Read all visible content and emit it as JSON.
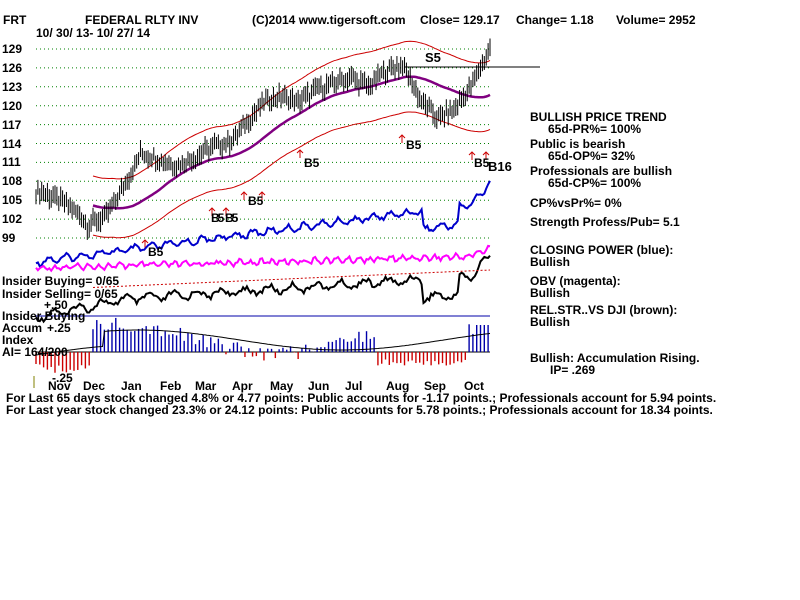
{
  "header": {
    "ticker": "FRT",
    "name": "FEDERAL RLTY INV",
    "source": "(C)2014 www.tigersoft.com",
    "close": "Close= 129.17",
    "change": "Change= 1.18",
    "volume": "Volume= 2952",
    "date_range": "10/ 30/ 13- 10/ 27/ 14"
  },
  "colors": {
    "price": "#000000",
    "bands": "#cc0000",
    "ma": "#800080",
    "closing_power": "#0000cc",
    "obv": "#ff00ff",
    "accum_pos": "#0000aa",
    "accum_neg": "#cc0000",
    "grid": "#008000"
  },
  "chart_data": {
    "type": "line",
    "y_ticks": [
      "129",
      "126",
      "123",
      "120",
      "117",
      "114",
      "111",
      "108",
      "105",
      "102",
      "99"
    ],
    "ylim": [
      97.5,
      130.5
    ],
    "x_ticks": [
      "Nov",
      "Dec",
      "Jan",
      "Feb",
      "Mar",
      "Apr",
      "May",
      "Jun",
      "Jul",
      "Aug",
      "Sep",
      "Oct"
    ],
    "price_series": {
      "name": "",
      "x": [
        "Oct30",
        "Nov13",
        "Nov27",
        "Dec11",
        "Dec25",
        "Jan8",
        "Jan22",
        "Feb5",
        "Feb19",
        "Mar5",
        "Mar19",
        "Apr2",
        "Apr16",
        "Apr30",
        "May14",
        "May28",
        "Jun11",
        "Jun25",
        "Jul9",
        "Jul23",
        "Aug6",
        "Aug20",
        "Sep3",
        "Sep17",
        "Oct1",
        "Oct15",
        "Oct27"
      ],
      "values": [
        106.5,
        105.5,
        104.0,
        101.0,
        102.5,
        107.0,
        112.5,
        111.5,
        110.5,
        111.5,
        113.5,
        114.0,
        117.0,
        120.5,
        121.5,
        120.5,
        122.5,
        123.5,
        124.5,
        123.0,
        125.5,
        126.5,
        121.0,
        118.0,
        119.5,
        123.5,
        129.17
      ]
    },
    "signals": [
      "S5",
      "B5",
      "B5",
      "B5",
      "B5",
      "B5",
      "B5",
      "B16",
      "B5"
    ],
    "panel_labels": {
      "insider_buying": "Insider Buying= 0/65",
      "insider_selling": "Insider Selling= 0/65",
      "insider_buying2": "Insider Buying",
      "accum_label": "Accum",
      "index_label": "Index",
      "ai_label": "AI= 164/200",
      "plus50": "+.50",
      "plus25": "+.25",
      "minus25": "-.25"
    }
  },
  "side_panel": {
    "trend_title": "BULLISH PRICE TREND",
    "trend_value": "65d-PR%= 100%",
    "public_title": "Public is bearish",
    "public_value": "65d-OP%= 32%",
    "prof_title": "Professionals are bullish",
    "prof_value": "65d-CP%= 100%",
    "cpvs": "CP%vsPr%= 0%",
    "strength": "Strength Profess/Pub= 5.1",
    "cp_title": "CLOSING POWER (blue):",
    "cp_value": "Bullish",
    "obv_title": "OBV (magenta):",
    "obv_value": "Bullish",
    "rel_title": "REL.STR..VS DJI (brown):",
    "rel_value": "Bullish",
    "accum_title": "Bullish: Accumulation Rising.",
    "ip_value": "IP= .269"
  },
  "footer": {
    "line1": "For Last 65 days stock changed 4.8% or 4.77 points: Public accounts for -1.17 points.; Professionals account for 5.94 points.",
    "line2": "For Last year stock changed 23.3% or 24.12 points: Public accounts for 5.78 points.; Professionals account for 18.34 points."
  }
}
